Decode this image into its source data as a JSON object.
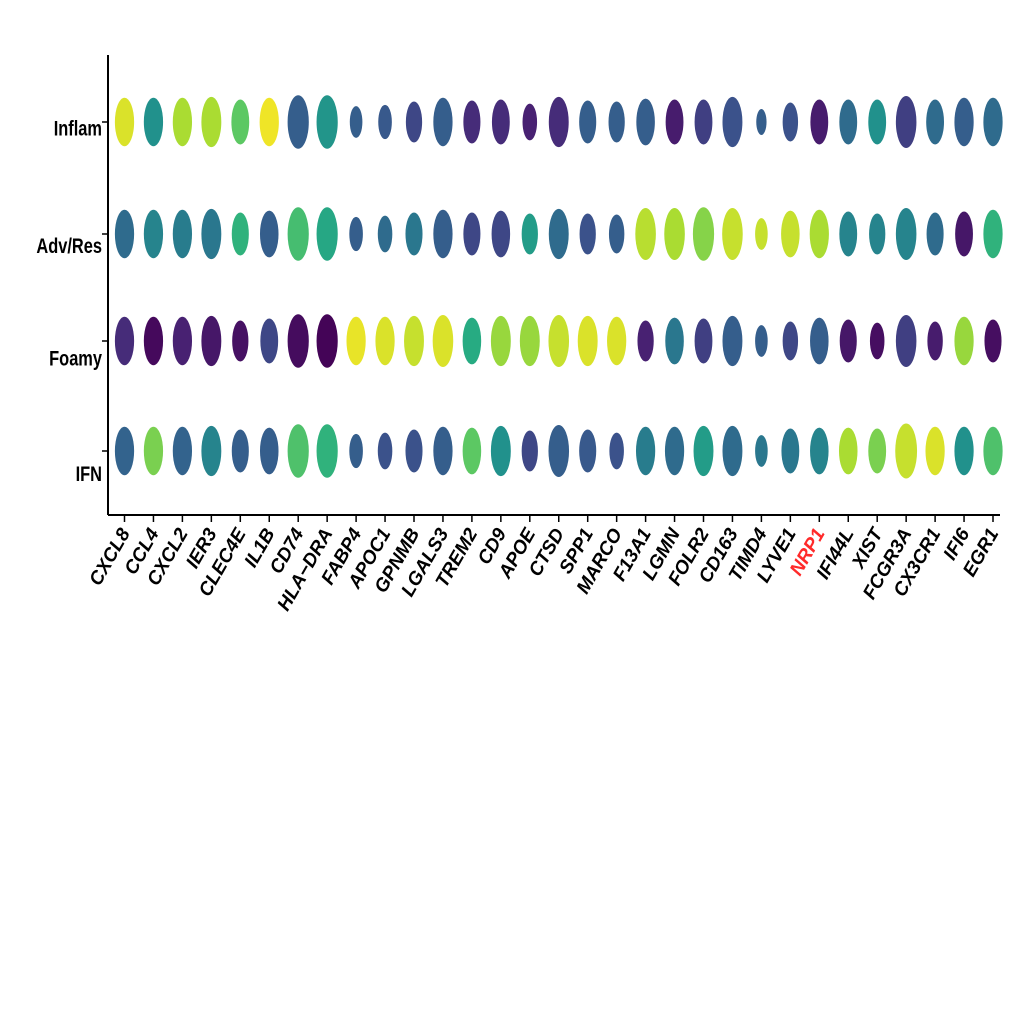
{
  "chart_data": {
    "type": "dotplot",
    "title": "",
    "xlabel": "",
    "ylabel": "",
    "rows": [
      "Inflam",
      "Adv/Res",
      "Foamy",
      "IFN"
    ],
    "genes": [
      "CXCL8",
      "CCL4",
      "CXCL2",
      "IER3",
      "CLEC4E",
      "IL1B",
      "CD74",
      "HLA−DRA",
      "FABP4",
      "APOC1",
      "GPNMB",
      "LGALS3",
      "TREM2",
      "CD9",
      "APOE",
      "CTSD",
      "SPP1",
      "MARCO",
      "F13A1",
      "LGMN",
      "FOLR2",
      "CD163",
      "TIMD4",
      "LYVE1",
      "NRP1",
      "IFI44L",
      "XIST",
      "FCGR3A",
      "CX3CR1",
      "IFI6",
      "EGR1"
    ],
    "highlight_gene": "NRP1",
    "highlight_color": "#ff2a2a",
    "label_color": "#000000",
    "colormap": "viridis",
    "size_scale_note": "pct expressed (0-1), color = scaled average expression (0-1)",
    "size": [
      [
        0.7,
        0.7,
        0.7,
        0.75,
        0.6,
        0.7,
        0.85,
        0.85,
        0.3,
        0.35,
        0.5,
        0.7,
        0.55,
        0.6,
        0.4,
        0.75,
        0.55,
        0.5,
        0.65,
        0.6,
        0.6,
        0.75,
        0.2,
        0.45,
        0.6,
        0.6,
        0.6,
        0.8,
        0.6,
        0.7,
        0.7
      ],
      [
        0.7,
        0.7,
        0.7,
        0.75,
        0.55,
        0.65,
        0.85,
        0.85,
        0.35,
        0.4,
        0.55,
        0.7,
        0.55,
        0.65,
        0.5,
        0.75,
        0.5,
        0.45,
        0.8,
        0.8,
        0.85,
        0.8,
        0.3,
        0.65,
        0.7,
        0.6,
        0.5,
        0.8,
        0.55,
        0.6,
        0.7
      ],
      [
        0.7,
        0.7,
        0.7,
        0.75,
        0.5,
        0.6,
        0.85,
        0.85,
        0.7,
        0.7,
        0.75,
        0.8,
        0.65,
        0.75,
        0.75,
        0.8,
        0.75,
        0.7,
        0.5,
        0.65,
        0.6,
        0.75,
        0.3,
        0.45,
        0.65,
        0.55,
        0.4,
        0.8,
        0.45,
        0.7,
        0.55
      ],
      [
        0.7,
        0.7,
        0.7,
        0.75,
        0.55,
        0.65,
        0.85,
        0.85,
        0.35,
        0.4,
        0.55,
        0.7,
        0.65,
        0.75,
        0.5,
        0.8,
        0.55,
        0.4,
        0.7,
        0.7,
        0.75,
        0.75,
        0.3,
        0.6,
        0.65,
        0.65,
        0.6,
        0.9,
        0.7,
        0.7,
        0.7
      ]
    ],
    "color": [
      [
        0.95,
        0.5,
        0.88,
        0.88,
        0.75,
        0.98,
        0.3,
        0.52,
        0.3,
        0.28,
        0.22,
        0.3,
        0.15,
        0.15,
        0.12,
        0.15,
        0.3,
        0.3,
        0.3,
        0.1,
        0.2,
        0.25,
        0.3,
        0.25,
        0.1,
        0.35,
        0.5,
        0.2,
        0.35,
        0.3,
        0.35
      ],
      [
        0.35,
        0.45,
        0.42,
        0.4,
        0.65,
        0.3,
        0.7,
        0.6,
        0.3,
        0.35,
        0.4,
        0.3,
        0.22,
        0.22,
        0.55,
        0.35,
        0.25,
        0.3,
        0.9,
        0.88,
        0.82,
        0.92,
        0.92,
        0.92,
        0.88,
        0.45,
        0.45,
        0.45,
        0.35,
        0.08,
        0.65
      ],
      [
        0.15,
        0.03,
        0.12,
        0.08,
        0.06,
        0.22,
        0.04,
        0.01,
        0.97,
        0.95,
        0.92,
        0.95,
        0.62,
        0.85,
        0.85,
        0.92,
        0.95,
        0.95,
        0.12,
        0.4,
        0.2,
        0.3,
        0.3,
        0.22,
        0.3,
        0.08,
        0.05,
        0.2,
        0.1,
        0.85,
        0.05
      ],
      [
        0.32,
        0.8,
        0.32,
        0.45,
        0.3,
        0.3,
        0.72,
        0.65,
        0.3,
        0.25,
        0.25,
        0.3,
        0.75,
        0.5,
        0.22,
        0.3,
        0.28,
        0.25,
        0.42,
        0.35,
        0.55,
        0.35,
        0.4,
        0.4,
        0.45,
        0.88,
        0.8,
        0.92,
        0.95,
        0.5,
        0.72
      ]
    ],
    "legend": "none"
  }
}
